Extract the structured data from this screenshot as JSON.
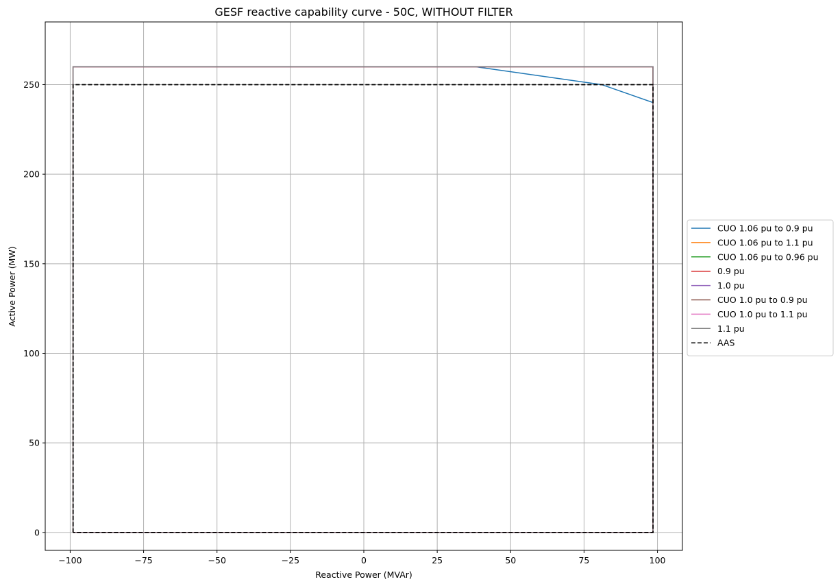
{
  "chart_data": {
    "type": "line",
    "title": "GESF reactive capability curve - 50C, WITHOUT FILTER",
    "xlabel": "Reactive Power (MVAr)",
    "ylabel": "Active Power (MW)",
    "xlim": [
      -108.5,
      108.5
    ],
    "ylim": [
      -10,
      285
    ],
    "x_ticks": [
      -100,
      -75,
      -50,
      -25,
      0,
      25,
      50,
      75,
      100
    ],
    "x_tick_labels": [
      "−100",
      "−75",
      "−50",
      "−25",
      "0",
      "25",
      "50",
      "75",
      "100"
    ],
    "y_ticks": [
      0,
      50,
      100,
      150,
      200,
      250
    ],
    "y_tick_labels": [
      "0",
      "50",
      "100",
      "150",
      "200",
      "250"
    ],
    "grid": true,
    "legend_position": "center-right outside",
    "series": [
      {
        "name": "CUO 1.06 pu to 0.9 pu",
        "color": "#1f77b4",
        "dash": "solid",
        "x": [
          -99,
          -99,
          38,
          81,
          98.5,
          98.5,
          -99
        ],
        "y": [
          0,
          260,
          260,
          250,
          240,
          0,
          0
        ]
      },
      {
        "name": "CUO 1.06 pu to 1.1 pu",
        "color": "#ff7f0e",
        "dash": "solid",
        "x": [
          -99,
          -99,
          98.5,
          98.5,
          -99
        ],
        "y": [
          0,
          260,
          260,
          0,
          0
        ]
      },
      {
        "name": "CUO 1.06 pu to 0.96 pu",
        "color": "#2ca02c",
        "dash": "solid",
        "x": [
          -99,
          -99,
          98.5,
          98.5,
          -99
        ],
        "y": [
          0,
          260,
          260,
          0,
          0
        ]
      },
      {
        "name": "0.9 pu",
        "color": "#d62728",
        "dash": "solid",
        "x": [
          -99,
          -99,
          98.5,
          98.5,
          -99
        ],
        "y": [
          0,
          260,
          260,
          0,
          0
        ]
      },
      {
        "name": "1.0 pu",
        "color": "#9467bd",
        "dash": "solid",
        "x": [
          -99,
          -99,
          98.5,
          98.5,
          -99
        ],
        "y": [
          0,
          260,
          260,
          0,
          0
        ]
      },
      {
        "name": "CUO 1.0 pu to 0.9 pu",
        "color": "#8c564b",
        "dash": "solid",
        "x": [
          -99,
          -99,
          98.5,
          98.5,
          -99
        ],
        "y": [
          0,
          260,
          260,
          0,
          0
        ]
      },
      {
        "name": "CUO 1.0 pu to 1.1 pu",
        "color": "#e377c2",
        "dash": "solid",
        "x": [
          -99,
          -99,
          98.5,
          98.5,
          -99
        ],
        "y": [
          0,
          260,
          260,
          0,
          0
        ]
      },
      {
        "name": "1.1 pu",
        "color": "#7f7f7f",
        "dash": "solid",
        "x": [
          -99,
          -99,
          98.5,
          98.5,
          -99
        ],
        "y": [
          0,
          260,
          260,
          0,
          0
        ]
      },
      {
        "name": "AAS",
        "color": "#000000",
        "dash": "dashed",
        "x": [
          -99,
          -99,
          98.5,
          98.5,
          -99
        ],
        "y": [
          0,
          250,
          250,
          0,
          0
        ]
      }
    ]
  }
}
